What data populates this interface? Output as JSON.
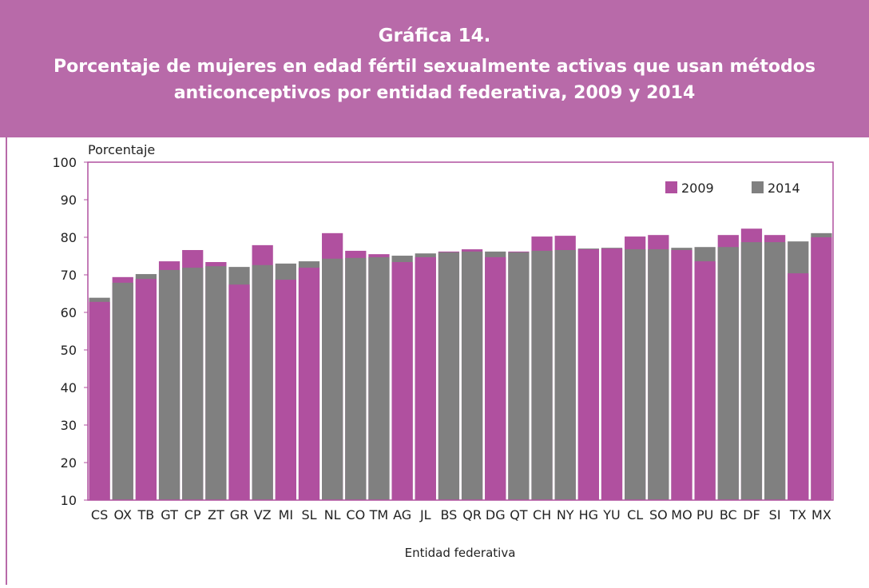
{
  "chart_data": {
    "type": "bar",
    "title": "Gráfica 14.",
    "subtitle": [
      "Porcentaje de mujeres en edad fértil sexualmente activas que usan métodos",
      "anticonceptivos por entidad federativa, 2009 y 2014"
    ],
    "ylabel": "Porcentaje",
    "xlabel": "Entidad federativa",
    "categories": [
      "CS",
      "OX",
      "TB",
      "GT",
      "CP",
      "ZT",
      "GR",
      "VZ",
      "MI",
      "SL",
      "NL",
      "CO",
      "TM",
      "AG",
      "JL",
      "BS",
      "QR",
      "DG",
      "QT",
      "CH",
      "NY",
      "HG",
      "YU",
      "CL",
      "SO",
      "MO",
      "PU",
      "BC",
      "DF",
      "SI",
      "TX",
      "MX"
    ],
    "series": [
      {
        "name": "2009",
        "color": "#b0509f",
        "values": [
          62.8,
          69.4,
          68.9,
          73.6,
          76.6,
          73.4,
          67.4,
          77.9,
          68.7,
          71.9,
          81.1,
          76.4,
          75.5,
          73.4,
          74.7,
          76.2,
          76.8,
          74.7,
          76.2,
          80.2,
          80.4,
          76.8,
          77.0,
          80.2,
          80.6,
          76.6,
          73.6,
          80.6,
          82.3,
          80.6,
          70.4,
          80.0
        ]
      },
      {
        "name": "2014",
        "color": "#808080",
        "values": [
          63.9,
          67.9,
          70.2,
          71.3,
          71.9,
          72.3,
          72.1,
          72.6,
          73.0,
          73.6,
          74.3,
          74.5,
          74.7,
          75.1,
          75.7,
          76.0,
          76.2,
          76.2,
          76.0,
          76.4,
          76.6,
          77.0,
          77.2,
          76.8,
          76.8,
          77.2,
          77.4,
          77.4,
          78.7,
          78.7,
          78.9,
          81.1
        ]
      }
    ],
    "ylim": [
      10,
      100
    ],
    "yticks": [
      10,
      20,
      30,
      40,
      50,
      60,
      70,
      80,
      90,
      100
    ],
    "overlap": true,
    "legend": "top-right"
  }
}
